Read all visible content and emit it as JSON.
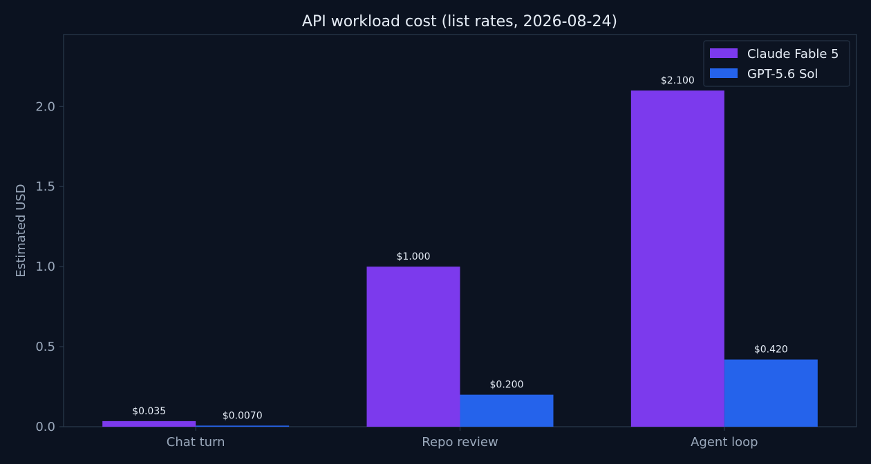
{
  "chart_data": {
    "type": "bar",
    "title": "API workload cost (list rates, 2026-08-24)",
    "xlabel": "",
    "ylabel": "Estimated USD",
    "categories": [
      "Chat turn",
      "Repo review",
      "Agent loop"
    ],
    "series": [
      {
        "name": "Claude Fable 5",
        "color": "#7c3aed",
        "values": [
          0.035,
          1.0,
          2.1
        ],
        "labels": [
          "$0.035",
          "$1.000",
          "$2.100"
        ]
      },
      {
        "name": "GPT-5.6 Sol",
        "color": "#2563eb",
        "values": [
          0.007,
          0.2,
          0.42
        ],
        "labels": [
          "$0.0070",
          "$0.200",
          "$0.420"
        ]
      }
    ],
    "ylim": [
      0,
      2.45
    ],
    "yticks": [
      0.0,
      0.5,
      1.0,
      1.5,
      2.0
    ],
    "ytick_labels": [
      "0.0",
      "0.5",
      "1.0",
      "1.5",
      "2.0"
    ],
    "grid": false,
    "legend_position": "top-right"
  },
  "colors": {
    "background": "#0b1220",
    "plot_background": "#0c1321",
    "axis": "#2a3a4d",
    "text": "#e6edf6",
    "muted_text": "#9aa8bb"
  }
}
